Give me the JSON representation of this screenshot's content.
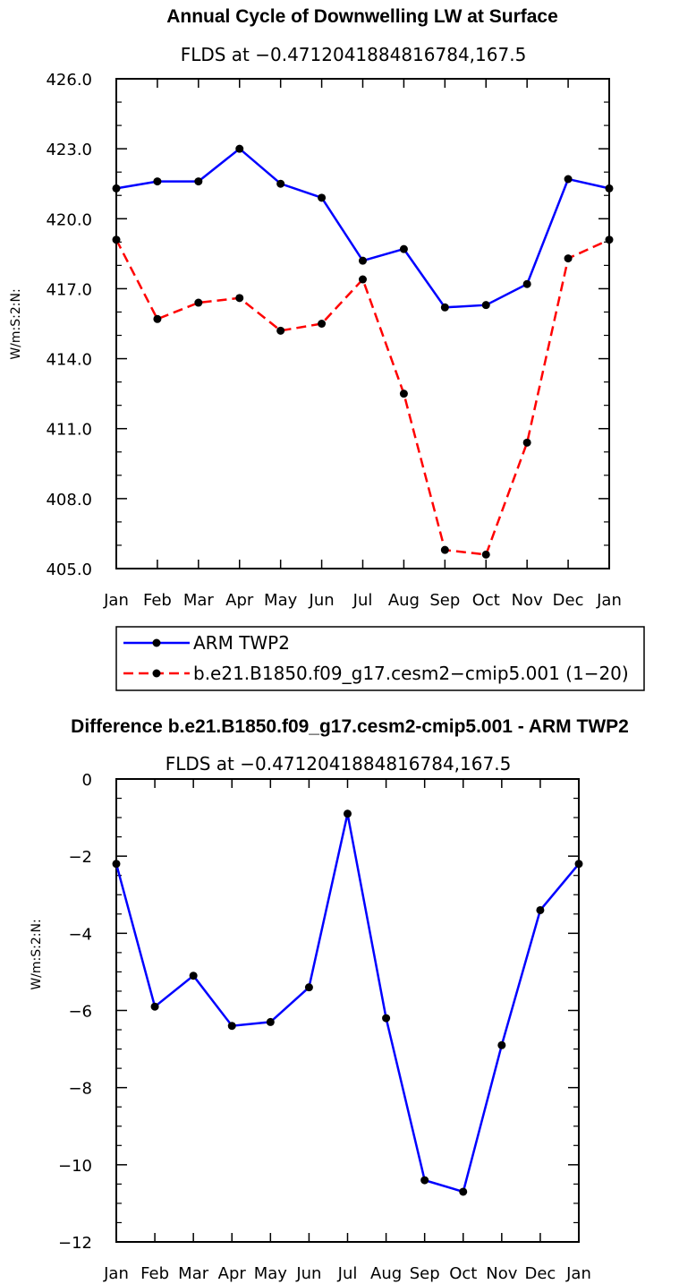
{
  "chart_data": [
    {
      "type": "line",
      "title": "Annual Cycle of Downwelling LW at Surface",
      "subtitle": "FLDS at −0.4712041884816784,167.5",
      "ylabel": "W/m:S:2:N:",
      "xlabel": "",
      "categories": [
        "Jan",
        "Feb",
        "Mar",
        "Apr",
        "May",
        "Jun",
        "Jul",
        "Aug",
        "Sep",
        "Oct",
        "Nov",
        "Dec",
        "Jan"
      ],
      "ylim": [
        405.0,
        426.0
      ],
      "yticks": [
        "405.0",
        "408.0",
        "411.0",
        "414.0",
        "417.0",
        "420.0",
        "423.0",
        "426.0"
      ],
      "series": [
        {
          "name": "ARM TWP2",
          "color": "#0000ff",
          "dash": "solid",
          "values": [
            421.3,
            421.6,
            421.6,
            423.0,
            421.5,
            420.9,
            418.2,
            418.7,
            416.2,
            416.3,
            417.2,
            421.7,
            421.3
          ]
        },
        {
          "name": "b.e21.B1850.f09_g17.cesm2−cmip5.001 (1−20)",
          "color": "#ff0000",
          "dash": "dashed",
          "values": [
            419.1,
            415.7,
            416.4,
            416.6,
            415.2,
            415.5,
            417.4,
            412.5,
            405.8,
            405.6,
            410.4,
            418.3,
            419.1
          ]
        }
      ]
    },
    {
      "type": "line",
      "title": "Difference b.e21.B1850.f09_g17.cesm2-cmip5.001 - ARM TWP2",
      "subtitle": "FLDS at −0.4712041884816784,167.5",
      "ylabel": "W/m:S:2:N:",
      "xlabel": "",
      "categories": [
        "Jan",
        "Feb",
        "Mar",
        "Apr",
        "May",
        "Jun",
        "Jul",
        "Aug",
        "Sep",
        "Oct",
        "Nov",
        "Dec",
        "Jan"
      ],
      "ylim": [
        -12,
        0
      ],
      "yticks": [
        "−12",
        "−10",
        "−8",
        "−6",
        "−4",
        "−2",
        "0"
      ],
      "series": [
        {
          "name": "Difference",
          "color": "#0000ff",
          "dash": "solid",
          "values": [
            -2.2,
            -5.9,
            -5.1,
            -6.4,
            -6.3,
            -5.4,
            -0.9,
            -6.2,
            -10.4,
            -10.7,
            -6.9,
            -3.4,
            -2.2
          ]
        }
      ]
    }
  ]
}
